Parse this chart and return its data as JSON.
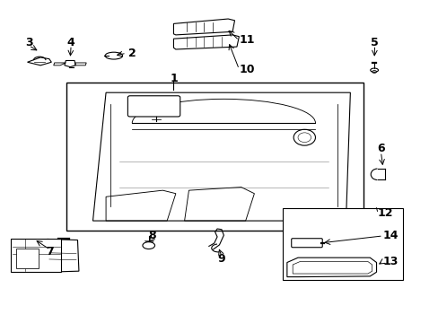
{
  "background_color": "#ffffff",
  "title": "",
  "fig_width": 4.89,
  "fig_height": 3.6,
  "dpi": 100,
  "line_color": "#000000",
  "label_fontsize": 9,
  "label_fontweight": "bold"
}
